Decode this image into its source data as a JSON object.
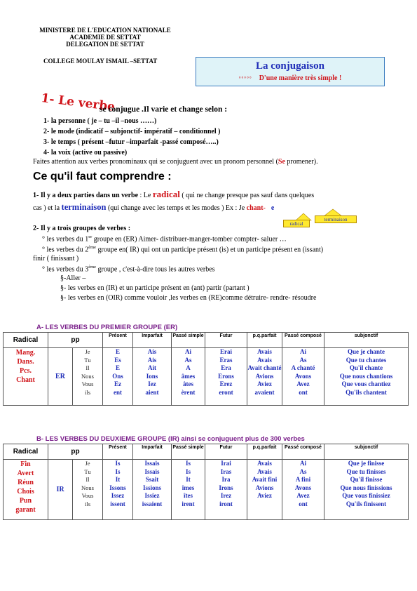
{
  "header": {
    "line1": "MINISTERE DE L'EDUCATION NATIONALE",
    "line2": "ACADEMIE DE SETTAT",
    "line3": "DELEGATION DE SETTAT",
    "college": "COLLEGE MOULAY ISMAIL –SETTAT"
  },
  "title_box": {
    "title": "La conjugaison",
    "degrees": "°°°°°",
    "subtitle": "D'une manière très simple !"
  },
  "intro": {
    "le_verbe": "1- Le verbe",
    "rest": "se conjugue .Il varie et change selon :",
    "items": [
      "1-   la personne ( je – tu –il –nous ……)",
      "2-   le mode (indicatif – subjonctif- impératif – conditionnel  )",
      "3-   le temps ( présent –futur –imparfait -passé composé…..)",
      "4-   la voix (active ou passive)"
    ],
    "pronominal_a": "Faites attention aux verbes pronominaux qui se conjuguent avec un pronom personnel (",
    "pronominal_se": "Se",
    "pronominal_b": " promener)."
  },
  "comprendre": {
    "heading": "Ce qu'il faut comprendre :",
    "p1_a": "1- Il y a deux parties dans un verbe",
    "p1_b": " : Le ",
    "p1_radical": "radical",
    "p1_c": " ( qui ne change presque pas sauf dans quelques",
    "p1_d": "cas  ) et la ",
    "p1_term": "terminaison",
    "p1_e": " (qui change avec les temps et les modes ) Ex : Je  ",
    "p1_chant": "chant-",
    "p1_ee": "e",
    "callout_radical": "radical",
    "callout_term": "terminaison",
    "p2": "2- Il y a trois groupes de verbes :",
    "g1_a": "°  les verbes du 1",
    "g1_sup": "er",
    "g1_b": " groupe en (ER) Aimer- distribuer-manger-tomber compter- saluer …",
    "g2_a": "°  les verbes du 2",
    "g2_sup": "ème",
    "g2_b": " groupe en( IR) qui ont un participe présent (is) et un participe présent en (issant)",
    "g2_c": "finir ( finissant )",
    "g3_a": "°  les verbes du 3",
    "g3_sup": "ème",
    "g3_b": " groupe , c'est-à-dire tous les autres verbes",
    "s1": "§-Aller –",
    "s2": "§- les verbes en (IR) et un participe présent en (ant) partir (partant )",
    "s3": "§- les verbes en (OIR) comme vouloir ,les verbes en (RE)comme  détruire- rendre- résoudre"
  },
  "tableA": {
    "title": "A-  LES VERBES DU PREMIER GROUPE (ER)",
    "headers": [
      "Radical",
      "pp",
      "Présent",
      "Imparfait",
      "Passé simple",
      "Futur",
      "p.q.parfait",
      "Passé composé",
      "subjonctif"
    ],
    "radicals": [
      "Mang.",
      "Dans.",
      "Pcs.",
      "Chant"
    ],
    "group": "ER",
    "pronouns": [
      "Je",
      "Tu",
      "Il",
      "Nous",
      "Vous",
      "ils"
    ],
    "cols": [
      [
        "E",
        "Es",
        "E",
        "Ons",
        "Ez",
        "ent"
      ],
      [
        "Ais",
        "Ais",
        "Ait",
        "Ions",
        "Iez",
        "aient"
      ],
      [
        "Ai",
        "As",
        "A",
        "âmes",
        "âtes",
        "èrent"
      ],
      [
        "Erai",
        "Eras",
        "Era",
        "Erons",
        "Erez",
        "eront"
      ],
      [
        "Avais",
        "Avais",
        "Avait chanté",
        "Avions",
        "Aviez",
        "avaient"
      ],
      [
        "Ai",
        "As",
        "A chanté",
        "Avons",
        "Avez",
        "ont"
      ],
      [
        "Que je chante",
        "Que tu chantes",
        "Qu'il chante",
        "Que nous chantions",
        "Que vous chantiez",
        "Qu'ils chantent"
      ]
    ]
  },
  "tableB": {
    "title": "B-  LES VERBES DU DEUXIEME  GROUPE (IR) ainsi se conjuguent plus de 300 verbes",
    "headers": [
      "Radical",
      "pp",
      "Présent",
      "Imparfait",
      "Passé simple",
      "Futur",
      "p.q.parfait",
      "Passé composé",
      "subjonctif"
    ],
    "radicals": [
      "Fin",
      "Avert",
      "Réun",
      "Chois",
      "Pun",
      "garant"
    ],
    "group": "IR",
    "pronouns": [
      "Je",
      "Tu",
      "Il",
      "Nous",
      "Vous",
      "ils"
    ],
    "cols": [
      [
        "Is",
        "Is",
        "It",
        "Issons",
        "Issez",
        "issent"
      ],
      [
        "Issais",
        "Issais",
        "Ssait",
        "Issions",
        "Issiez",
        "issaient"
      ],
      [
        "Is",
        "Is",
        "It",
        "îmes",
        "îtes",
        "irent"
      ],
      [
        "Irai",
        "Iras",
        "Ira",
        "Irons",
        "Irez",
        "iront"
      ],
      [
        "Avais",
        "Avais",
        "Avait fini",
        "Avions",
        "Aviez",
        ""
      ],
      [
        "Ai",
        "As",
        "A fini",
        "Avons",
        "Avez",
        "ont"
      ],
      [
        "Que je finisse",
        "Que tu finisses",
        "Qu'il finisse",
        "Que nous finissions",
        "Que vous finissiez",
        "Qu'ils finissent"
      ]
    ]
  }
}
